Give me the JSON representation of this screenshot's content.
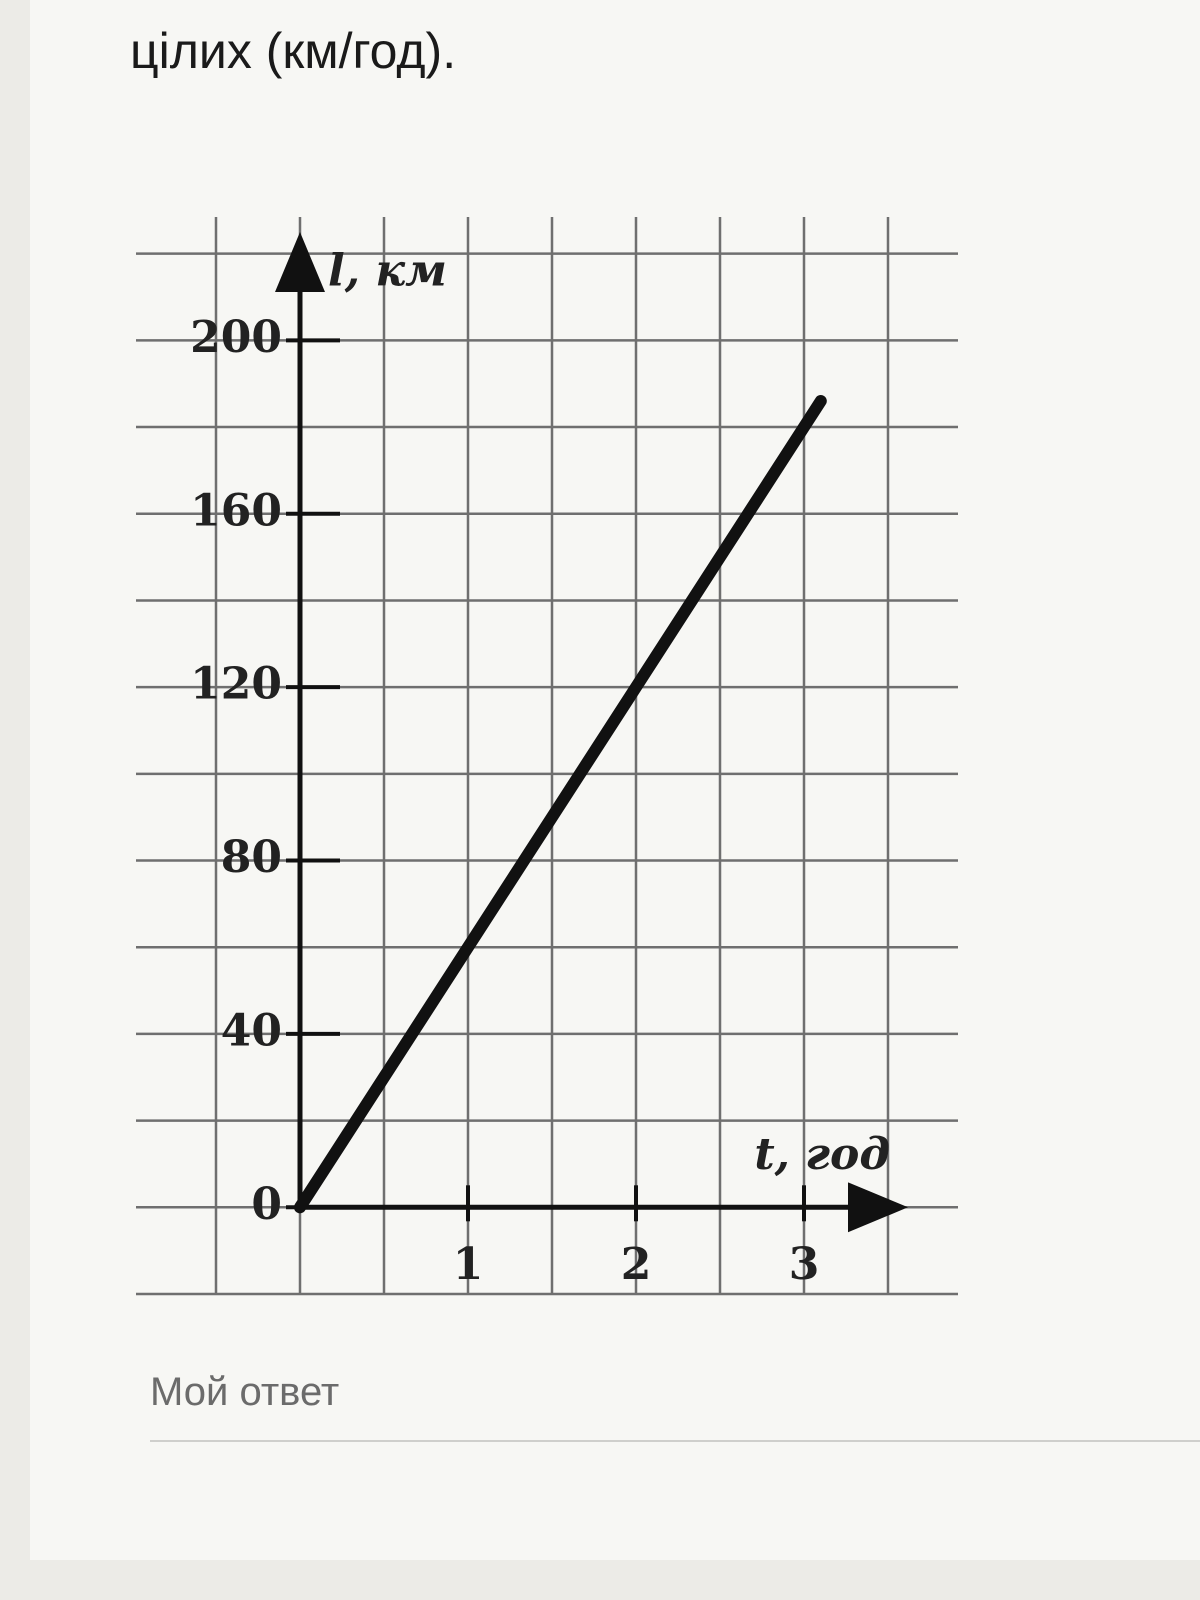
{
  "question_text": "цілих (км/год).",
  "answer_placeholder": "Мой ответ",
  "chart_data": {
    "type": "line",
    "x_label": "t, год",
    "y_label": "l, км",
    "x": [
      0,
      3.1
    ],
    "series": [
      {
        "values": [
          0,
          186
        ],
        "color": "#111111"
      }
    ],
    "xlim": [
      -0.5,
      3.5
    ],
    "ylim": [
      -20,
      225
    ],
    "xticks": [
      1,
      2,
      3
    ],
    "yticks": [
      0,
      40,
      80,
      120,
      160,
      200
    ],
    "xgrid": [
      -0.5,
      0,
      0.5,
      1,
      1.5,
      2,
      2.5,
      3,
      3.5
    ],
    "ygrid": [
      -20,
      0,
      20,
      40,
      60,
      80,
      100,
      120,
      140,
      160,
      180,
      200,
      220
    ],
    "grid": true
  }
}
